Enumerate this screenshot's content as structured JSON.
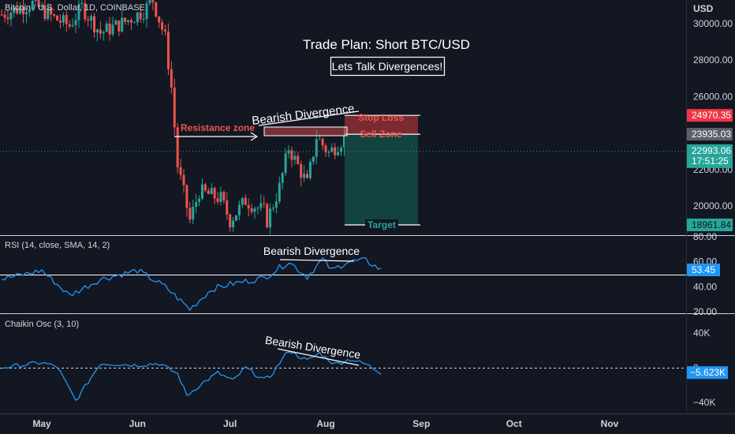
{
  "symbol": "Bitcoin / U.S. Dollar, 1D, COINBASE",
  "currency": "USD",
  "annotations": {
    "title": "Trade Plan: Short BTC/USD",
    "subtitle": "Lets Talk Divergences!",
    "bearish_divergence": "Bearish Divergence",
    "resistance_zone": "Resistance zone",
    "stop_loss": "Stop Loss",
    "sell_zone": "Sell Zone",
    "target": "Target"
  },
  "price_axis": {
    "ticks": [
      "30000.00",
      "28000.00",
      "26000.00",
      "22000.00",
      "20000.00"
    ],
    "badges": {
      "stop": "24970.35",
      "sell": "23935.03",
      "last": "22993.06",
      "countdown": "17:51:25",
      "target": "18961.84"
    }
  },
  "rsi": {
    "label": "RSI (14, close, SMA, 14, 2)",
    "ticks": [
      "80.00",
      "60.00",
      "40.00",
      "20.00"
    ],
    "value": "53.45"
  },
  "chaikin": {
    "label": "Chaikin Osc (3, 10)",
    "ticks": [
      "40K",
      "0",
      "−40K"
    ],
    "value": "−5.623K"
  },
  "time_axis": [
    "May",
    "Jun",
    "Jul",
    "Aug",
    "Sep",
    "Oct",
    "Nov"
  ],
  "colors": {
    "background": "#131722",
    "up": "#26a69a",
    "down": "#ef5350",
    "rsi_line": "#2196f3",
    "stop_zone": "#7a2a33",
    "target_zone": "#12433f",
    "resistance": "#ef5350",
    "target_text": "#26a69a"
  },
  "chart_data": {
    "type": "candlestick",
    "x_range": [
      "2022-04-18",
      "2022-11-18"
    ],
    "price_range": [
      18700,
      31000
    ],
    "trade_plan": {
      "stop_loss": 24970.35,
      "sell_zone": 23935.03,
      "target": 18961.84,
      "last_price": 22993.06
    },
    "price_anchors": [
      [
        "2022-04-18",
        30500
      ],
      [
        "2022-04-28",
        31100
      ],
      [
        "2022-05-05",
        30300
      ],
      [
        "2022-05-10",
        29900
      ],
      [
        "2022-05-14",
        30900
      ],
      [
        "2022-05-20",
        29500
      ],
      [
        "2022-05-28",
        30100
      ],
      [
        "2022-06-03",
        30700
      ],
      [
        "2022-06-06",
        31300
      ],
      [
        "2022-06-10",
        29200
      ],
      [
        "2022-06-12",
        26500
      ],
      [
        "2022-06-14",
        22200
      ],
      [
        "2022-06-18",
        19200
      ],
      [
        "2022-06-21",
        20800
      ],
      [
        "2022-06-28",
        20400
      ],
      [
        "2022-07-01",
        19200
      ],
      [
        "2022-07-06",
        20300
      ],
      [
        "2022-07-12",
        19700
      ],
      [
        "2022-07-13",
        19200
      ],
      [
        "2022-07-17",
        21000
      ],
      [
        "2022-07-20",
        23200
      ],
      [
        "2022-07-26",
        21200
      ],
      [
        "2022-07-29",
        23800
      ],
      [
        "2022-08-02",
        22900
      ],
      [
        "2022-08-08",
        23900
      ],
      [
        "2022-08-14",
        24300
      ],
      [
        "2022-08-20",
        22900
      ]
    ],
    "rsi_anchors": [
      [
        "2022-04-18",
        46
      ],
      [
        "2022-05-01",
        53
      ],
      [
        "2022-05-10",
        33
      ],
      [
        "2022-05-20",
        46
      ],
      [
        "2022-06-01",
        53
      ],
      [
        "2022-06-10",
        40
      ],
      [
        "2022-06-18",
        22
      ],
      [
        "2022-06-25",
        38
      ],
      [
        "2022-07-01",
        42
      ],
      [
        "2022-07-12",
        47
      ],
      [
        "2022-07-20",
        60
      ],
      [
        "2022-07-26",
        48
      ],
      [
        "2022-07-31",
        62
      ],
      [
        "2022-08-03",
        53
      ],
      [
        "2022-08-08",
        60
      ],
      [
        "2022-08-14",
        61
      ],
      [
        "2022-08-19",
        53.45
      ]
    ],
    "chaikin_anchors": [
      [
        "2022-04-18",
        0
      ],
      [
        "2022-05-01",
        6000
      ],
      [
        "2022-05-06",
        1000
      ],
      [
        "2022-05-12",
        -38000
      ],
      [
        "2022-05-20",
        5000
      ],
      [
        "2022-06-01",
        3000
      ],
      [
        "2022-06-08",
        5000
      ],
      [
        "2022-06-14",
        -7000
      ],
      [
        "2022-06-17",
        -32000
      ],
      [
        "2022-06-22",
        -18000
      ],
      [
        "2022-06-27",
        -6000
      ],
      [
        "2022-07-02",
        -15000
      ],
      [
        "2022-07-06",
        0
      ],
      [
        "2022-07-12",
        -14000
      ],
      [
        "2022-07-14",
        -10000
      ],
      [
        "2022-07-20",
        20000
      ],
      [
        "2022-07-26",
        8000
      ],
      [
        "2022-07-30",
        17000
      ],
      [
        "2022-08-04",
        4000
      ],
      [
        "2022-08-09",
        10000
      ],
      [
        "2022-08-14",
        4000
      ],
      [
        "2022-08-19",
        -5623
      ]
    ]
  }
}
